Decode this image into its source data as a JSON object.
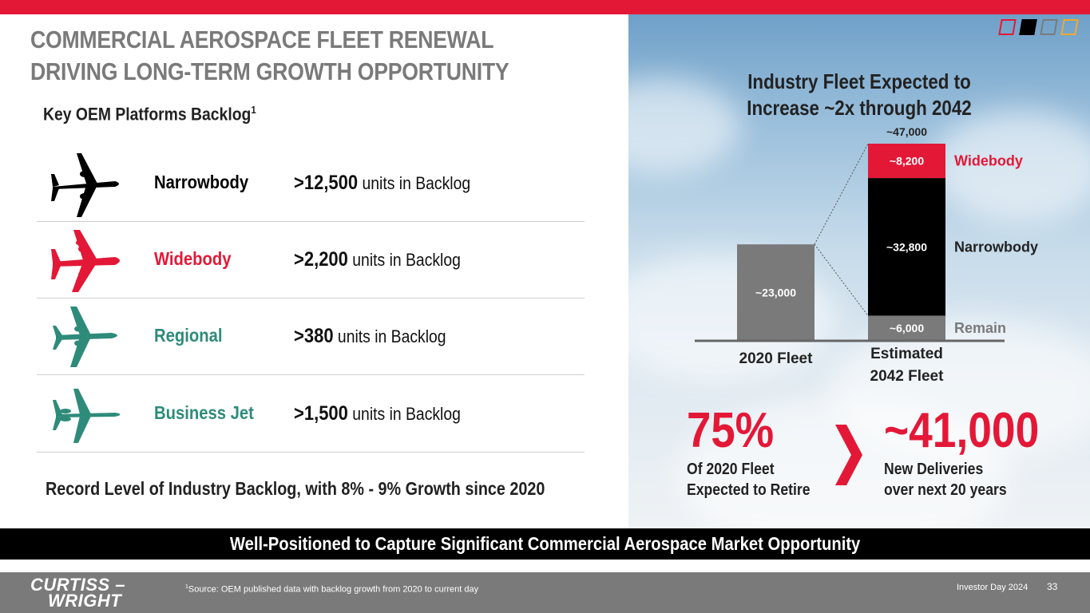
{
  "title": {
    "line1": "COMMERCIAL AEROSPACE FLEET RENEWAL",
    "line2": "DRIVING LONG-TERM GROWTH OPPORTUNITY"
  },
  "backlog": {
    "heading": "Key OEM Platforms Backlog",
    "heading_sup": "1",
    "rows": [
      {
        "name": "Narrowbody",
        "value": ">12,500",
        "suffix": " units in Backlog",
        "color": "#000000",
        "icon": "narrowbody-plane-icon"
      },
      {
        "name": "Widebody",
        "value": ">2,200",
        "suffix": " units in Backlog",
        "color": "#e31837",
        "icon": "widebody-plane-icon"
      },
      {
        "name": "Regional",
        "value": ">380",
        "suffix": " units in Backlog",
        "color": "#2e8b7a",
        "icon": "regional-plane-icon"
      },
      {
        "name": "Business Jet",
        "value": ">1,500",
        "suffix": " units in Backlog",
        "color": "#2e8b7a",
        "icon": "business-jet-icon"
      }
    ],
    "record_text": "Record Level of Industry Backlog, with 8% - 9% Growth since 2020"
  },
  "chart_data": {
    "type": "bar",
    "title": "Industry Fleet Expected to Increase ~2x through 2042",
    "categories": [
      "2020 Fleet",
      "Estimated 2042 Fleet"
    ],
    "category_lines": [
      [
        "2020 Fleet"
      ],
      [
        "Estimated",
        "2042 Fleet"
      ]
    ],
    "series": [
      {
        "name": "Remain",
        "values": [
          23000,
          6000
        ],
        "labels": [
          "~23,000",
          "~6,000"
        ],
        "color": "#7a7a7a"
      },
      {
        "name": "Narrowbody",
        "values": [
          0,
          32800
        ],
        "labels": [
          "",
          "~32,800"
        ],
        "color": "#000000"
      },
      {
        "name": "Widebody",
        "values": [
          0,
          8200
        ],
        "labels": [
          "",
          "~8,200"
        ],
        "color": "#e31837"
      }
    ],
    "totals": [
      "",
      "~47,000"
    ],
    "legend_placement": "right",
    "ylim": [
      0,
      47000
    ]
  },
  "stats": {
    "retire_pct": "75%",
    "retire_line1": "Of 2020 Fleet",
    "retire_line2": "Expected to Retire",
    "deliveries": "~41,000",
    "deliveries_line1": "New Deliveries",
    "deliveries_line2": "over next 20 years"
  },
  "banner": "Well-Positioned to Capture Significant Commercial Aerospace Market Opportunity",
  "footer": {
    "logo_line1": "CURTISS –",
    "logo_line2": "WRIGHT",
    "source_sup": "1",
    "source": "Source: OEM published data with backlog growth from 2020 to current day",
    "event": "Investor Day 2024",
    "page": "33"
  },
  "colors": {
    "brand_red": "#e31837",
    "gray": "#7a7a7a",
    "teal": "#2e8b7a",
    "gold": "#f0a830"
  }
}
